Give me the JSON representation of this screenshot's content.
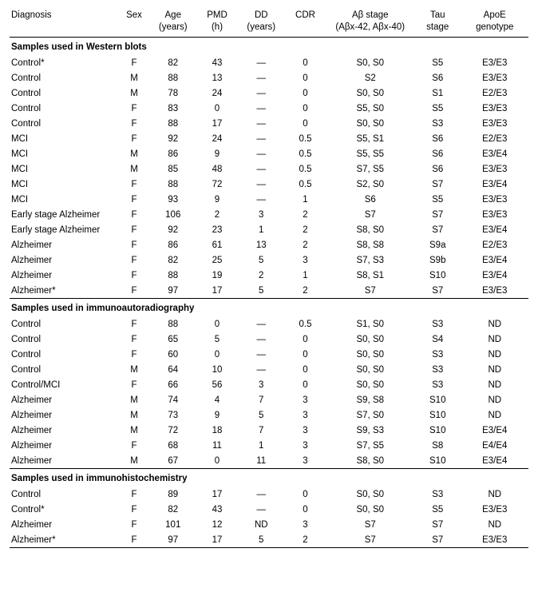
{
  "headers": [
    "Diagnosis",
    "Sex",
    "Age\n(years)",
    "PMD\n(h)",
    "DD\n(years)",
    "CDR",
    "Aβ stage\n(Aβx-42, Aβx-40)",
    "Tau\nstage",
    "ApoE\ngenotype"
  ],
  "sections": [
    {
      "title": "Samples used in Western blots",
      "rows": [
        [
          "Control*",
          "F",
          "82",
          "43",
          "—",
          "0",
          "S0, S0",
          "S5",
          "E3/E3"
        ],
        [
          "Control",
          "M",
          "88",
          "13",
          "—",
          "0",
          "S2",
          "S6",
          "E3/E3"
        ],
        [
          "Control",
          "M",
          "78",
          "24",
          "—",
          "0",
          "S0, S0",
          "S1",
          "E2/E3"
        ],
        [
          "Control",
          "F",
          "83",
          "0",
          "—",
          "0",
          "S5, S0",
          "S5",
          "E3/E3"
        ],
        [
          "Control",
          "F",
          "88",
          "17",
          "—",
          "0",
          "S0, S0",
          "S3",
          "E3/E3"
        ],
        [
          "MCI",
          "F",
          "92",
          "24",
          "—",
          "0.5",
          "S5, S1",
          "S6",
          "E2/E3"
        ],
        [
          "MCI",
          "M",
          "86",
          "9",
          "—",
          "0.5",
          "S5, S5",
          "S6",
          "E3/E4"
        ],
        [
          "MCI",
          "M",
          "85",
          "48",
          "—",
          "0.5",
          "S7, S5",
          "S6",
          "E3/E3"
        ],
        [
          "MCI",
          "F",
          "88",
          "72",
          "—",
          "0.5",
          "S2, S0",
          "S7",
          "E3/E4"
        ],
        [
          "MCI",
          "F",
          "93",
          "9",
          "—",
          "1",
          "S6",
          "S5",
          "E3/E3"
        ],
        [
          "Early stage Alzheimer",
          "F",
          "106",
          "2",
          "3",
          "2",
          "S7",
          "S7",
          "E3/E3"
        ],
        [
          "Early stage Alzheimer",
          "F",
          "92",
          "23",
          "1",
          "2",
          "S8, S0",
          "S7",
          "E3/E4"
        ],
        [
          "Alzheimer",
          "F",
          "86",
          "61",
          "13",
          "2",
          "S8, S8",
          "S9a",
          "E2/E3"
        ],
        [
          "Alzheimer",
          "F",
          "82",
          "25",
          "5",
          "3",
          "S7, S3",
          "S9b",
          "E3/E4"
        ],
        [
          "Alzheimer",
          "F",
          "88",
          "19",
          "2",
          "1",
          "S8, S1",
          "S10",
          "E3/E4"
        ],
        [
          "Alzheimer*",
          "F",
          "97",
          "17",
          "5",
          "2",
          "S7",
          "S7",
          "E3/E3"
        ]
      ]
    },
    {
      "title": "Samples used in immunoautoradiography",
      "rows": [
        [
          "Control",
          "F",
          "88",
          "0",
          "—",
          "0.5",
          "S1, S0",
          "S3",
          "ND"
        ],
        [
          "Control",
          "F",
          "65",
          "5",
          "—",
          "0",
          "S0, S0",
          "S4",
          "ND"
        ],
        [
          "Control",
          "F",
          "60",
          "0",
          "—",
          "0",
          "S0, S0",
          "S3",
          "ND"
        ],
        [
          "Control",
          "M",
          "64",
          "10",
          "—",
          "0",
          "S0, S0",
          "S3",
          "ND"
        ],
        [
          "Control/MCI",
          "F",
          "66",
          "56",
          "3",
          "0",
          "S0, S0",
          "S3",
          "ND"
        ],
        [
          "Alzheimer",
          "M",
          "74",
          "4",
          "7",
          "3",
          "S9, S8",
          "S10",
          "ND"
        ],
        [
          "Alzheimer",
          "M",
          "73",
          "9",
          "5",
          "3",
          "S7, S0",
          "S10",
          "ND"
        ],
        [
          "Alzheimer",
          "M",
          "72",
          "18",
          "7",
          "3",
          "S9, S3",
          "S10",
          "E3/E4"
        ],
        [
          "Alzheimer",
          "F",
          "68",
          "11",
          "1",
          "3",
          "S7, S5",
          "S8",
          "E4/E4"
        ],
        [
          "Alzheimer",
          "M",
          "67",
          "0",
          "11",
          "3",
          "S8, S0",
          "S10",
          "E3/E4"
        ]
      ]
    },
    {
      "title": "Samples used in immunohistochemistry",
      "rows": [
        [
          "Control",
          "F",
          "89",
          "17",
          "—",
          "0",
          "S0, S0",
          "S3",
          "ND"
        ],
        [
          "Control*",
          "F",
          "82",
          "43",
          "—",
          "0",
          "S0, S0",
          "S5",
          "E3/E3"
        ],
        [
          "Alzheimer",
          "F",
          "101",
          "12",
          "ND",
          "3",
          "S7",
          "S7",
          "ND"
        ],
        [
          "Alzheimer*",
          "F",
          "97",
          "17",
          "5",
          "2",
          "S7",
          "S7",
          "E3/E3"
        ]
      ]
    }
  ]
}
